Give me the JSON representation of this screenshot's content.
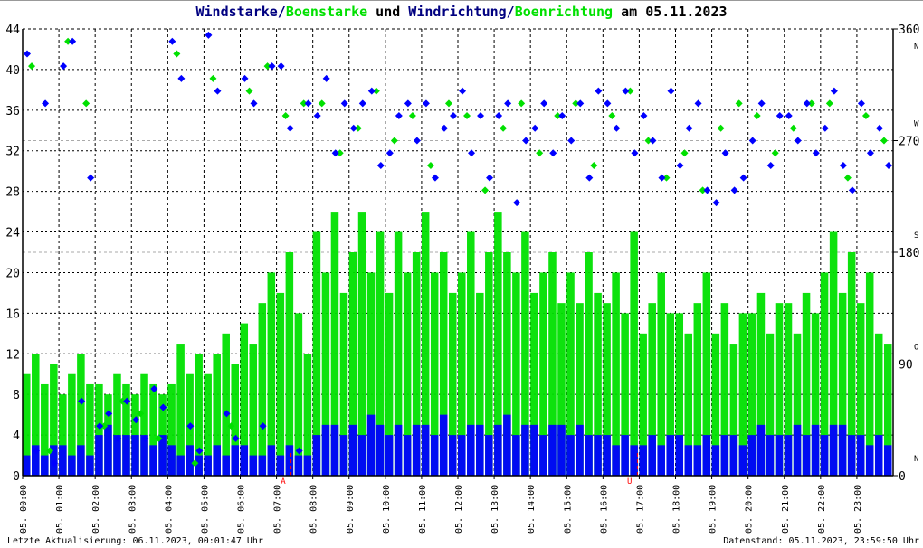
{
  "title": {
    "part1": "Windstarke/",
    "part2": "Boenstarke",
    "part3": " und ",
    "part4": "Windrichtung/",
    "part5": "Boenrichtung",
    "part6": " am 05.11.2023"
  },
  "footer": {
    "left": "Letzte Aktualisierung: 06.11.2023, 00:01:47 Uhr",
    "right": "Datenstand: 05.11.2023, 23:59:50 Uhr"
  },
  "colors": {
    "wind": "#0000ff",
    "gust": "#00e000",
    "title_dark": "#000080",
    "marker": "#ff0000"
  },
  "chart_data": {
    "type": "line",
    "title": "Windstarke/Boenstarke und Windrichtung/Boenrichtung am 05.11.2023",
    "x_unit": "hour",
    "xlim": [
      0,
      24
    ],
    "ylim": [
      0,
      44
    ],
    "y2lim": [
      0,
      360
    ],
    "grid": true,
    "y_ticks": [
      "0",
      "4",
      "8",
      "12",
      "16",
      "20",
      "24",
      "28",
      "32",
      "36",
      "40",
      "44"
    ],
    "y2_ticks": [
      {
        "label": "0",
        "dir": "N"
      },
      {
        "label": "90",
        "dir": "O"
      },
      {
        "label": "180",
        "dir": "S"
      },
      {
        "label": "270",
        "dir": "W"
      },
      {
        "label": "360",
        "dir": "N"
      }
    ],
    "x_ticks": [
      "05. 00:00",
      "05. 01:00",
      "05. 02:00",
      "05. 03:00",
      "05. 04:00",
      "05. 05:00",
      "05. 06:00",
      "05. 07:00",
      "05. 08:00",
      "05. 09:00",
      "05. 10:00",
      "05. 11:00",
      "05. 12:00",
      "05. 13:00",
      "05. 14:00",
      "05. 15:00",
      "05. 16:00",
      "05. 17:00",
      "05. 18:00",
      "05. 19:00",
      "05. 20:00",
      "05. 21:00",
      "05. 22:00",
      "05. 23:00"
    ],
    "markers": [
      {
        "label": "A",
        "hour": 7.4
      },
      {
        "label": "U",
        "hour": 16.95
      }
    ],
    "step_hours": 0.25,
    "series": [
      {
        "name": "Windstarke",
        "axis": "left",
        "values": [
          2,
          3,
          2,
          3,
          3,
          2,
          3,
          2,
          4,
          5,
          4,
          4,
          4,
          4,
          3,
          4,
          3,
          2,
          3,
          2,
          2,
          3,
          2,
          3,
          3,
          2,
          2,
          3,
          2,
          3,
          2,
          2,
          4,
          5,
          5,
          4,
          5,
          4,
          6,
          5,
          4,
          5,
          4,
          5,
          5,
          4,
          6,
          4,
          4,
          5,
          5,
          4,
          5,
          6,
          4,
          5,
          5,
          4,
          5,
          5,
          4,
          5,
          4,
          4,
          4,
          3,
          4,
          3,
          3,
          4,
          3,
          4,
          4,
          3,
          3,
          4,
          3,
          4,
          4,
          3,
          4,
          5,
          4,
          4,
          4,
          5,
          4,
          5,
          4,
          5,
          5,
          4,
          4,
          3,
          4,
          3
        ]
      },
      {
        "name": "Boenstarke",
        "axis": "left",
        "values": [
          10,
          12,
          9,
          11,
          8,
          10,
          12,
          9,
          9,
          8,
          10,
          9,
          8,
          10,
          9,
          8,
          9,
          13,
          10,
          12,
          10,
          12,
          14,
          11,
          15,
          13,
          17,
          20,
          18,
          22,
          16,
          12,
          24,
          20,
          26,
          18,
          22,
          26,
          20,
          24,
          18,
          24,
          20,
          22,
          26,
          20,
          22,
          18,
          20,
          24,
          18,
          22,
          26,
          22,
          20,
          24,
          18,
          20,
          22,
          17,
          20,
          17,
          22,
          18,
          17,
          20,
          16,
          24,
          14,
          17,
          20,
          16,
          16,
          14,
          17,
          20,
          14,
          17,
          13,
          16,
          16,
          18,
          14,
          17,
          17,
          14,
          18,
          16,
          20,
          24,
          18,
          22,
          17,
          20,
          14,
          13
        ]
      },
      {
        "name": "Windrichtung",
        "axis": "right",
        "values": [
          340,
          20,
          300,
          10,
          330,
          350,
          60,
          240,
          40,
          50,
          30,
          60,
          45,
          30,
          70,
          55,
          350,
          320,
          40,
          20,
          355,
          310,
          50,
          30,
          320,
          300,
          40,
          330,
          330,
          280,
          20,
          300,
          290,
          320,
          260,
          300,
          280,
          300,
          310,
          250,
          260,
          290,
          300,
          270,
          300,
          240,
          280,
          290,
          310,
          260,
          290,
          240,
          290,
          300,
          220,
          270,
          280,
          300,
          260,
          290,
          270,
          300,
          240,
          310,
          300,
          280,
          310,
          260,
          290,
          270,
          240,
          310,
          250,
          280,
          300,
          230,
          220,
          260,
          230,
          240,
          270,
          300,
          250,
          290,
          290,
          270,
          300,
          260,
          280,
          310,
          250,
          230,
          300,
          260,
          280,
          250
        ]
      },
      {
        "name": "Boenrichtung",
        "axis": "right",
        "step_hours": 0.5,
        "values": [
          330,
          20,
          350,
          300,
          40,
          60,
          50,
          30,
          340,
          10,
          320,
          40,
          310,
          330,
          290,
          300,
          300,
          260,
          280,
          310,
          270,
          290,
          250,
          300,
          290,
          230,
          280,
          300,
          260,
          290,
          300,
          250,
          290,
          310,
          270,
          240,
          260,
          230,
          280,
          300,
          290,
          260,
          280,
          300,
          300,
          240,
          290,
          270
        ]
      }
    ]
  }
}
